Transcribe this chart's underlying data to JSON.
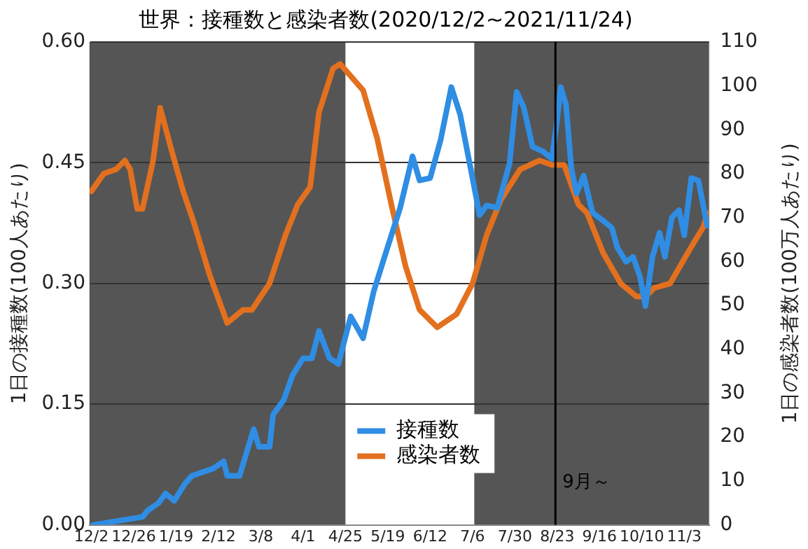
{
  "chart_data": {
    "type": "line",
    "title": "世界：接種数と感染者数(2020/12/2~2021/11/24)",
    "ylabel": "1日の接種数(100人あたり)",
    "y2label": "1日の感染者数(100万人あたり)",
    "series": [
      {
        "name": "接種数",
        "color": "#2f8de4",
        "x": [
          "2020-12-03",
          "2020-12-31",
          "2021-01-03",
          "2021-01-09",
          "2021-01-13",
          "2021-01-18",
          "2021-01-24",
          "2021-01-28",
          "2021-02-09",
          "2021-02-15",
          "2021-02-17",
          "2021-02-24",
          "2021-03-04",
          "2021-03-07",
          "2021-03-13",
          "2021-03-15",
          "2021-03-21",
          "2021-03-26",
          "2021-04-01",
          "2021-04-06",
          "2021-04-10",
          "2021-04-16",
          "2021-04-21",
          "2021-04-28",
          "2021-05-05",
          "2021-05-11",
          "2021-05-18",
          "2021-05-26",
          "2021-06-02",
          "2021-06-06",
          "2021-06-12",
          "2021-06-18",
          "2021-06-24",
          "2021-06-29",
          "2021-07-06",
          "2021-07-10",
          "2021-07-14",
          "2021-07-20",
          "2021-07-27",
          "2021-07-31",
          "2021-08-04",
          "2021-08-09",
          "2021-08-15",
          "2021-08-20",
          "2021-08-23",
          "2021-08-25",
          "2021-08-28",
          "2021-08-31",
          "2021-09-03",
          "2021-09-07",
          "2021-09-12",
          "2021-09-18",
          "2021-09-23",
          "2021-09-26",
          "2021-10-01",
          "2021-10-05",
          "2021-10-09",
          "2021-10-12",
          "2021-10-16",
          "2021-10-20",
          "2021-10-23",
          "2021-10-27",
          "2021-10-31",
          "2021-11-03",
          "2021-11-07",
          "2021-11-11",
          "2021-11-16"
        ],
        "values": [
          0,
          0.01,
          0.018,
          0.027,
          0.039,
          0.03,
          0.051,
          0.061,
          0.07,
          0.079,
          0.061,
          0.061,
          0.119,
          0.097,
          0.097,
          0.137,
          0.155,
          0.186,
          0.207,
          0.207,
          0.241,
          0.207,
          0.2,
          0.259,
          0.232,
          0.29,
          0.339,
          0.394,
          0.458,
          0.428,
          0.431,
          0.479,
          0.544,
          0.51,
          0.431,
          0.385,
          0.397,
          0.394,
          0.449,
          0.538,
          0.519,
          0.47,
          0.464,
          0.455,
          0.504,
          0.544,
          0.522,
          0.443,
          0.412,
          0.434,
          0.388,
          0.378,
          0.369,
          0.345,
          0.327,
          0.333,
          0.308,
          0.272,
          0.333,
          0.363,
          0.333,
          0.382,
          0.391,
          0.36,
          0.431,
          0.428,
          0.372
        ]
      },
      {
        "name": "感染者数",
        "color": "#e3701e",
        "axis": "y2",
        "x": [
          "2020-12-02",
          "2020-12-09",
          "2020-12-16",
          "2020-12-21",
          "2020-12-24",
          "2020-12-28",
          "2020-12-31",
          "2021-01-06",
          "2021-01-10",
          "2021-01-16",
          "2021-01-23",
          "2021-01-29",
          "2021-02-07",
          "2021-02-17",
          "2021-02-26",
          "2021-03-03",
          "2021-03-13",
          "2021-03-22",
          "2021-03-29",
          "2021-04-05",
          "2021-04-10",
          "2021-04-18",
          "2021-04-22",
          "2021-05-05",
          "2021-05-13",
          "2021-05-21",
          "2021-05-29",
          "2021-06-06",
          "2021-06-16",
          "2021-06-27",
          "2021-07-06",
          "2021-07-14",
          "2021-07-22",
          "2021-08-02",
          "2021-08-13",
          "2021-08-20",
          "2021-08-27",
          "2021-09-04",
          "2021-09-09",
          "2021-09-18",
          "2021-09-28",
          "2021-10-07",
          "2021-10-12",
          "2021-10-17",
          "2021-10-26",
          "2021-11-05",
          "2021-11-14",
          "2021-11-16"
        ],
        "values": [
          76,
          80,
          81,
          83,
          81,
          72,
          72,
          83,
          95,
          86,
          76,
          69,
          57,
          46,
          49,
          49,
          55,
          66,
          73,
          77,
          94,
          104,
          105,
          99,
          88,
          73,
          59,
          49,
          45,
          48,
          55,
          66,
          74,
          81,
          83,
          82,
          82,
          73,
          71,
          62,
          55,
          52,
          52,
          54,
          55,
          62,
          68,
          71
        ]
      }
    ],
    "xlim": [
      "2020-12-01",
      "2021-11-17"
    ],
    "xticks": [
      {
        "value": "2020-12-02",
        "label": "12/2"
      },
      {
        "value": "2020-12-26",
        "label": "12/26"
      },
      {
        "value": "2021-01-19",
        "label": "1/19"
      },
      {
        "value": "2021-02-12",
        "label": "2/12"
      },
      {
        "value": "2021-03-08",
        "label": "3/8"
      },
      {
        "value": "2021-04-01",
        "label": "4/1"
      },
      {
        "value": "2021-04-25",
        "label": "4/25"
      },
      {
        "value": "2021-05-19",
        "label": "5/19"
      },
      {
        "value": "2021-06-12",
        "label": "6/12"
      },
      {
        "value": "2021-07-06",
        "label": "7/6"
      },
      {
        "value": "2021-07-30",
        "label": "7/30"
      },
      {
        "value": "2021-08-23",
        "label": "8/23"
      },
      {
        "value": "2021-09-16",
        "label": "9/16"
      },
      {
        "value": "2021-10-10",
        "label": "10/10"
      },
      {
        "value": "2021-11-03",
        "label": "11/3"
      }
    ],
    "ylim": [
      0,
      0.6
    ],
    "yticks": [
      {
        "value": 0,
        "label": "0.00"
      },
      {
        "value": 0.15,
        "label": "0.15"
      },
      {
        "value": 0.3,
        "label": "0.30"
      },
      {
        "value": 0.45,
        "label": "0.45"
      },
      {
        "value": 0.6,
        "label": "0.60"
      }
    ],
    "y2lim": [
      0,
      110
    ],
    "y2ticks": [
      0,
      10,
      20,
      30,
      40,
      50,
      60,
      70,
      80,
      90,
      100,
      110
    ],
    "bands": [
      {
        "axis": "x",
        "from": "2020-12-01",
        "to": "2021-04-25",
        "color": "#555555"
      },
      {
        "axis": "x",
        "from": "2021-07-07",
        "to": "2021-11-17",
        "color": "#555555"
      }
    ],
    "ref_lines": [
      {
        "axis": "x",
        "value": "2021-08-22",
        "label": "9月～",
        "color": "#000000"
      }
    ],
    "grid": "y",
    "legend": "bottom",
    "marker": "none",
    "line_style": "solid"
  }
}
